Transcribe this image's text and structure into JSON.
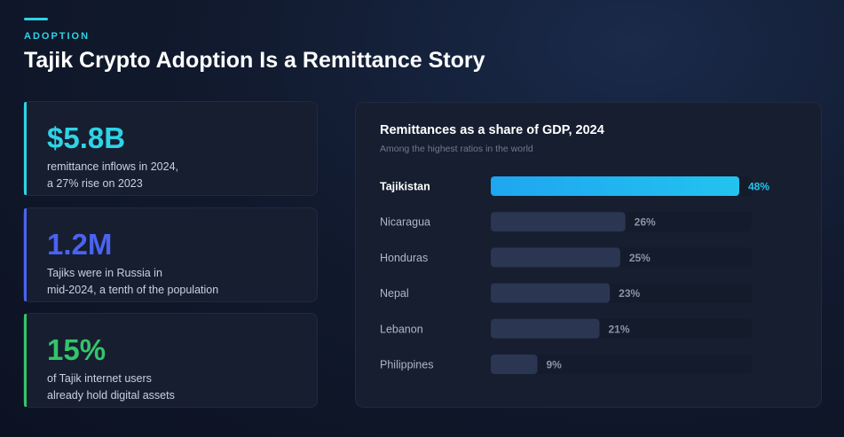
{
  "header": {
    "kicker": "ADOPTION",
    "title": "Tajik Crypto Adoption Is a Remittance Story"
  },
  "stats": [
    {
      "value": "$5.8B",
      "line1": "remittance inflows in 2024,",
      "line2": "a 27% rise on 2023",
      "color": "#2fd3e6"
    },
    {
      "value": "1.2M",
      "line1": "Tajiks were in Russia in",
      "line2": "mid-2024, a tenth of the population",
      "color": "#4a63f0"
    },
    {
      "value": "15%",
      "line1": "of Tajik internet users",
      "line2": "already hold digital assets",
      "color": "#34c46a"
    }
  ],
  "chart_data": {
    "type": "bar",
    "orientation": "horizontal",
    "title": "Remittances as a share of GDP, 2024",
    "subtitle": "Among the highest ratios in the world",
    "categories": [
      "Tajikistan",
      "Nicaragua",
      "Honduras",
      "Nepal",
      "Lebanon",
      "Philippines"
    ],
    "values": [
      48,
      26,
      25,
      23,
      21,
      9
    ],
    "labels": [
      "48%",
      "26%",
      "25%",
      "23%",
      "21%",
      "9%"
    ],
    "highlight": "Tajikistan",
    "xlim": [
      0,
      50
    ],
    "highlight_color": "#22c3ef",
    "bar_color": "#2b3652",
    "track_color": "#141b2b",
    "grid": false,
    "legend": "none"
  }
}
